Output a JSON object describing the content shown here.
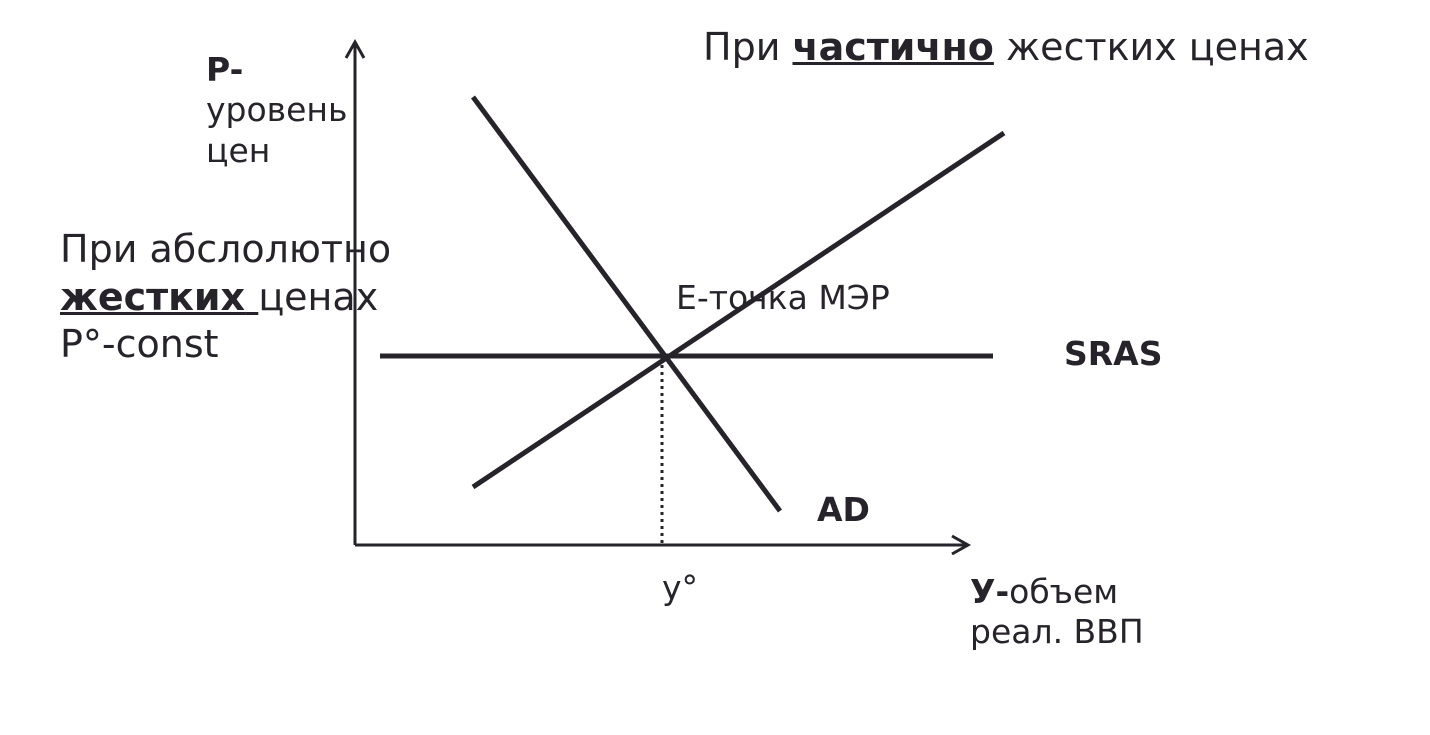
{
  "title": {
    "prefix": "При",
    "emphasis": "частично",
    "suffix": "жестких ценах"
  },
  "y_axis": {
    "symbol": "P-",
    "lines": [
      "уровень",
      "цен"
    ]
  },
  "x_axis": {
    "symbol": "У-",
    "lines": [
      "объем",
      "реал. ВВП"
    ]
  },
  "note": {
    "line1": "При абслолютно",
    "emphasis": "жестких",
    "rest": "ценах",
    "line3": "P°-const"
  },
  "labels": {
    "equilibrium": "E-точка МЭР",
    "sras": "SRAS",
    "ad": "AD",
    "y0": "у°"
  }
}
